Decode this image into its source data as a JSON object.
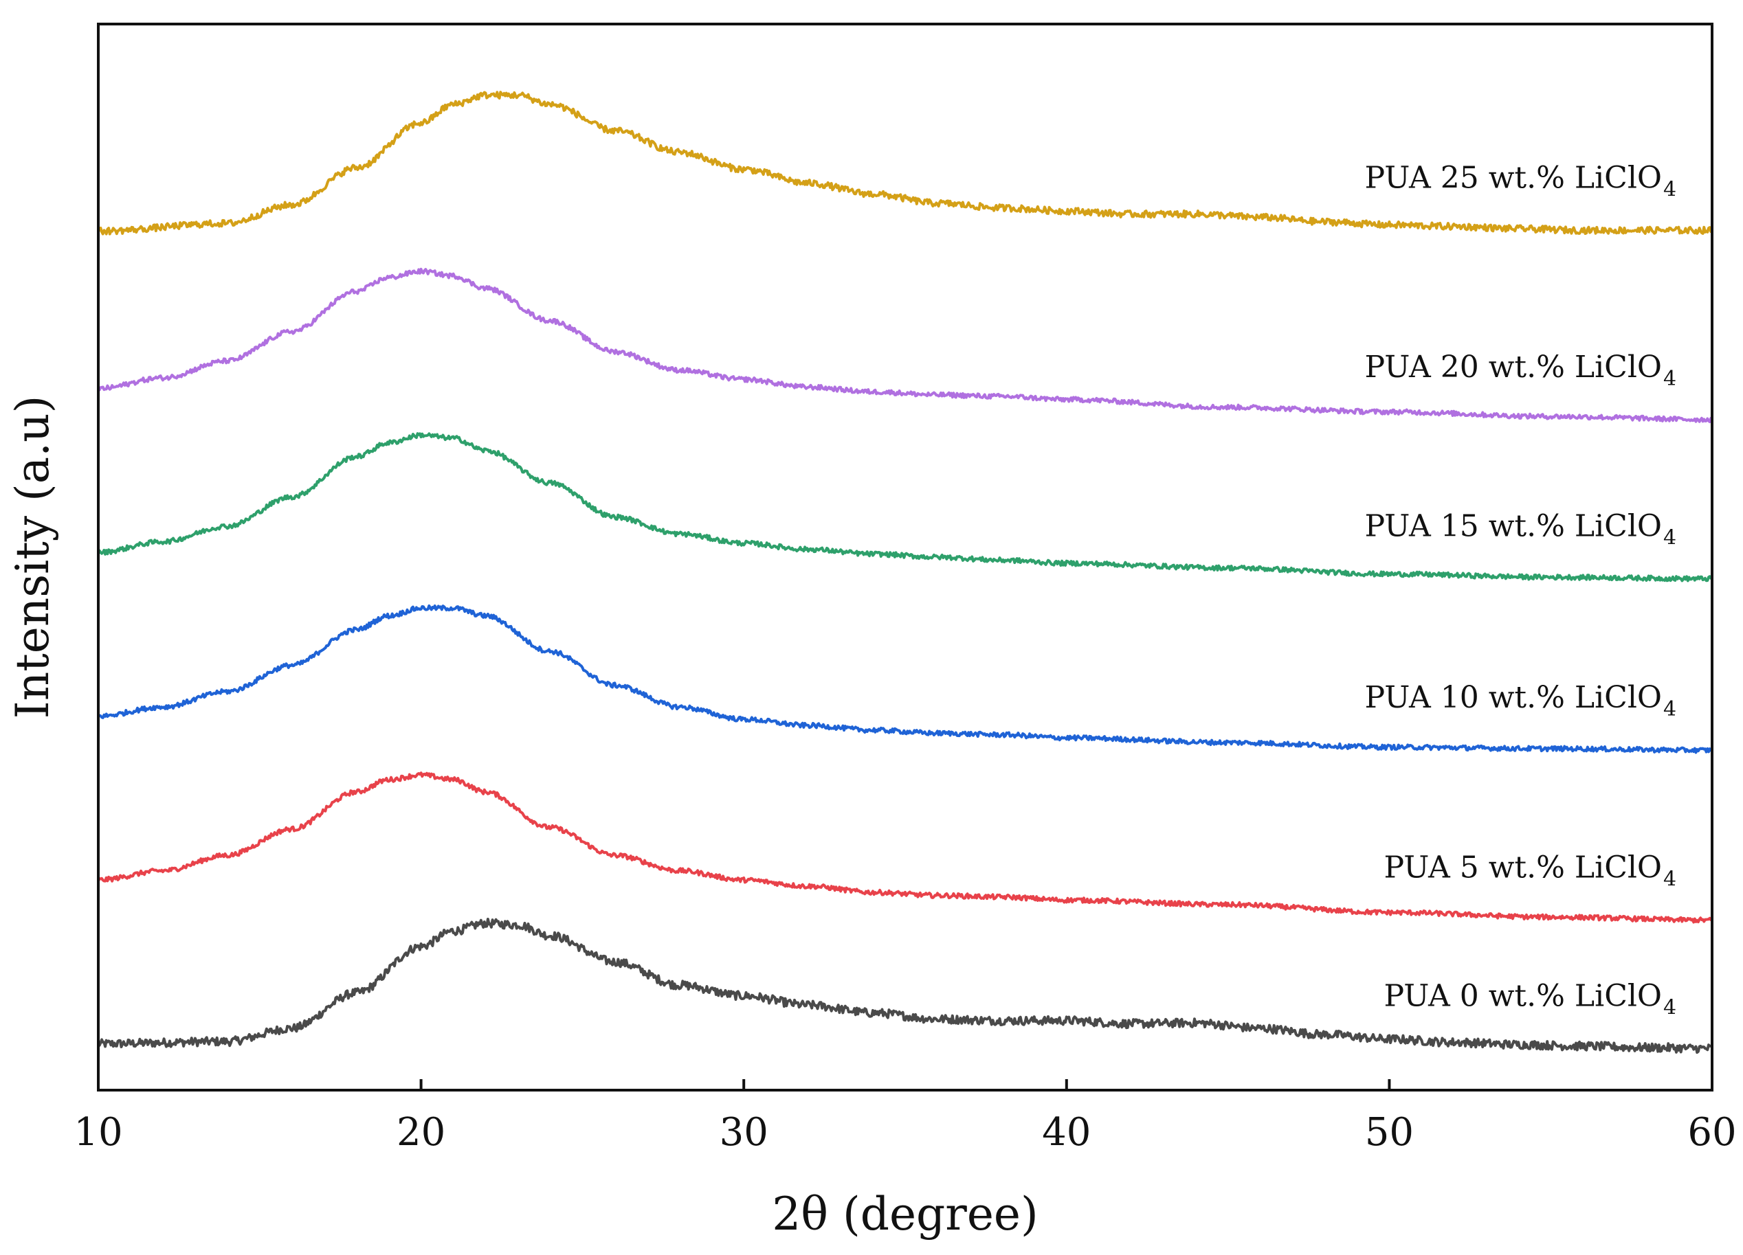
{
  "chart_data": {
    "type": "line",
    "title": "",
    "xlabel": "2θ (degree)",
    "ylabel": "Intensity (a.u)",
    "xlim": [
      10,
      60
    ],
    "xticks": [
      "10",
      "20",
      "30",
      "40",
      "50",
      "60"
    ],
    "yticks": [],
    "grid": false,
    "legend": "inline labels at right of each curve",
    "series": [
      {
        "name": "PUA 0 wt.% LiClO",
        "subscript": "4",
        "color": "#4a4a4a",
        "offset": 0,
        "noise": 0.55,
        "x": [
          10,
          14,
          16,
          18,
          20,
          21,
          22,
          23,
          24,
          26,
          28,
          30,
          32,
          34,
          36,
          38,
          40,
          42,
          44,
          46,
          48,
          50,
          52,
          54,
          56,
          58,
          60
        ],
        "y": [
          0.0,
          0.15,
          1.0,
          3.3,
          6.3,
          7.3,
          7.8,
          7.7,
          7.0,
          5.3,
          3.8,
          3.1,
          2.5,
          2.0,
          1.6,
          1.5,
          1.5,
          1.3,
          1.35,
          1.0,
          0.6,
          0.3,
          0.1,
          -0.05,
          -0.15,
          -0.25,
          -0.3
        ]
      },
      {
        "name": "PUA 5 wt.% LiClO",
        "subscript": "4",
        "color": "#e8424a",
        "offset": 10.6,
        "noise": 0.3,
        "x": [
          10,
          12,
          14,
          16,
          18,
          19,
          20,
          21,
          22,
          24,
          26,
          28,
          30,
          32,
          34,
          36,
          38,
          40,
          45,
          50,
          55,
          60
        ],
        "y": [
          0.0,
          0.6,
          1.6,
          3.3,
          5.7,
          6.5,
          6.8,
          6.5,
          5.7,
          3.4,
          1.6,
          0.6,
          0.0,
          -0.4,
          -0.8,
          -1.0,
          -1.1,
          -1.3,
          -1.6,
          -2.1,
          -2.4,
          -2.6
        ]
      },
      {
        "name": "PUA 10 wt.% LiClO",
        "subscript": "4",
        "color": "#1f63d6",
        "offset": 21.2,
        "noise": 0.3,
        "x": [
          10,
          12,
          14,
          16,
          18,
          19,
          20,
          21,
          22,
          24,
          26,
          28,
          30,
          32,
          34,
          36,
          38,
          40,
          45,
          50,
          55,
          60
        ],
        "y": [
          0.0,
          0.6,
          1.6,
          3.3,
          5.6,
          6.5,
          7.0,
          7.0,
          6.5,
          4.2,
          2.0,
          0.6,
          -0.2,
          -0.6,
          -0.9,
          -1.1,
          -1.2,
          -1.4,
          -1.7,
          -2.0,
          -2.1,
          -2.2
        ]
      },
      {
        "name": "PUA 15 wt.% LiClO",
        "subscript": "4",
        "color": "#2ea06b",
        "offset": 31.8,
        "noise": 0.3,
        "x": [
          10,
          12,
          14,
          16,
          18,
          19,
          20,
          21,
          22,
          24,
          26,
          28,
          30,
          32,
          34,
          36,
          38,
          40,
          45,
          50,
          55,
          60
        ],
        "y": [
          0.0,
          0.7,
          1.7,
          3.6,
          6.2,
          7.1,
          7.6,
          7.4,
          6.6,
          4.5,
          2.3,
          1.2,
          0.6,
          0.2,
          -0.1,
          -0.3,
          -0.5,
          -0.7,
          -1.0,
          -1.4,
          -1.6,
          -1.7
        ]
      },
      {
        "name": "PUA 20 wt.% LiClO",
        "subscript": "4",
        "color": "#b070e0",
        "offset": 42.4,
        "noise": 0.3,
        "x": [
          10,
          12,
          14,
          16,
          18,
          19,
          20,
          21,
          22,
          24,
          26,
          28,
          30,
          32,
          34,
          36,
          38,
          40,
          45,
          50,
          55,
          60
        ],
        "y": [
          0.0,
          0.7,
          1.8,
          3.7,
          6.3,
          7.2,
          7.6,
          7.3,
          6.5,
          4.4,
          2.4,
          1.2,
          0.6,
          0.1,
          -0.2,
          -0.4,
          -0.5,
          -0.7,
          -1.2,
          -1.5,
          -1.8,
          -2.0
        ]
      },
      {
        "name": "PUA 25 wt.% LiClO",
        "subscript": "4",
        "color": "#d4a017",
        "offset": 52.6,
        "noise": 0.42,
        "x": [
          10,
          14,
          16,
          18,
          20,
          21,
          22,
          23,
          24,
          26,
          28,
          30,
          32,
          34,
          36,
          38,
          40,
          42,
          44,
          46,
          48,
          50,
          52,
          54,
          56,
          58,
          60
        ],
        "y": [
          0.0,
          0.5,
          1.7,
          4.1,
          7.0,
          8.2,
          8.8,
          8.8,
          8.2,
          6.5,
          5.1,
          4.0,
          3.1,
          2.4,
          1.8,
          1.5,
          1.3,
          1.1,
          1.1,
          0.9,
          0.6,
          0.4,
          0.3,
          0.15,
          0.05,
          0.05,
          0.05
        ]
      }
    ]
  }
}
